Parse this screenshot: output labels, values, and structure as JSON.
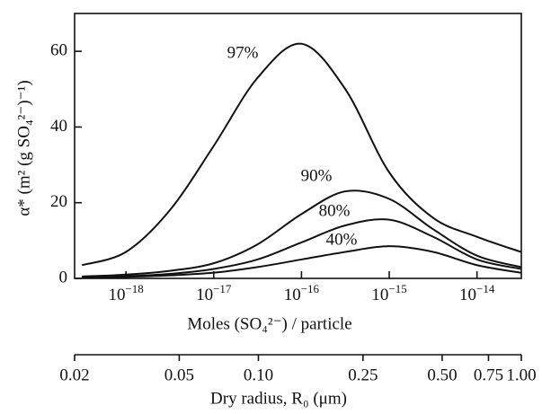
{
  "chart_data": {
    "type": "line",
    "x_label": "Moles (SO₄²⁻) / particle",
    "y_label": "α* (m² (g SO₄²⁻)⁻¹)",
    "x_scale": "log",
    "xlim": [
      2.6e-19,
      3.2e-14
    ],
    "xticks": [
      {
        "value": 1e-18,
        "label": "10−18"
      },
      {
        "value": 1e-17,
        "label": "10−17"
      },
      {
        "value": 1e-16,
        "label": "10−16"
      },
      {
        "value": 1e-15,
        "label": "10−15"
      },
      {
        "value": 1e-14,
        "label": "10−14"
      }
    ],
    "ylim": [
      0,
      70
    ],
    "yticks": [
      0,
      20,
      40,
      60
    ],
    "x2_label": "Dry radius, R₀ (μm)",
    "x2_scale": "log",
    "x2lim": [
      0.02,
      1
    ],
    "x2ticks": [
      0.02,
      0.05,
      {
        "value": 0.1,
        "label": "0.10"
      },
      0.25,
      {
        "value": 0.5,
        "label": "0.50"
      },
      0.75,
      {
        "value": 1,
        "label": "1.00"
      }
    ],
    "x": [
      3.16e-19,
      1e-18,
      3.16e-18,
      1e-17,
      3.16e-17,
      1e-16,
      3.16e-16,
      1e-15,
      3.16e-15,
      1e-14,
      3.16e-14
    ],
    "series": [
      {
        "name": "97%",
        "color": "#111111",
        "values": [
          3.5,
          7,
          18,
          35,
          53,
          62,
          50,
          28,
          16,
          11,
          7
        ]
      },
      {
        "name": "90%",
        "color": "#111111",
        "values": [
          0.5,
          1,
          2,
          4,
          9,
          17,
          23,
          21,
          13,
          6,
          3
        ]
      },
      {
        "name": "80%",
        "color": "#111111",
        "values": [
          0.3,
          0.6,
          1.2,
          2.5,
          5,
          9.5,
          14,
          15.5,
          11,
          5,
          2.5
        ]
      },
      {
        "name": "40%",
        "color": "#111111",
        "values": [
          0.2,
          0.4,
          0.8,
          1.5,
          3,
          5,
          7,
          8.5,
          7,
          3.5,
          1.5
        ]
      }
    ]
  }
}
